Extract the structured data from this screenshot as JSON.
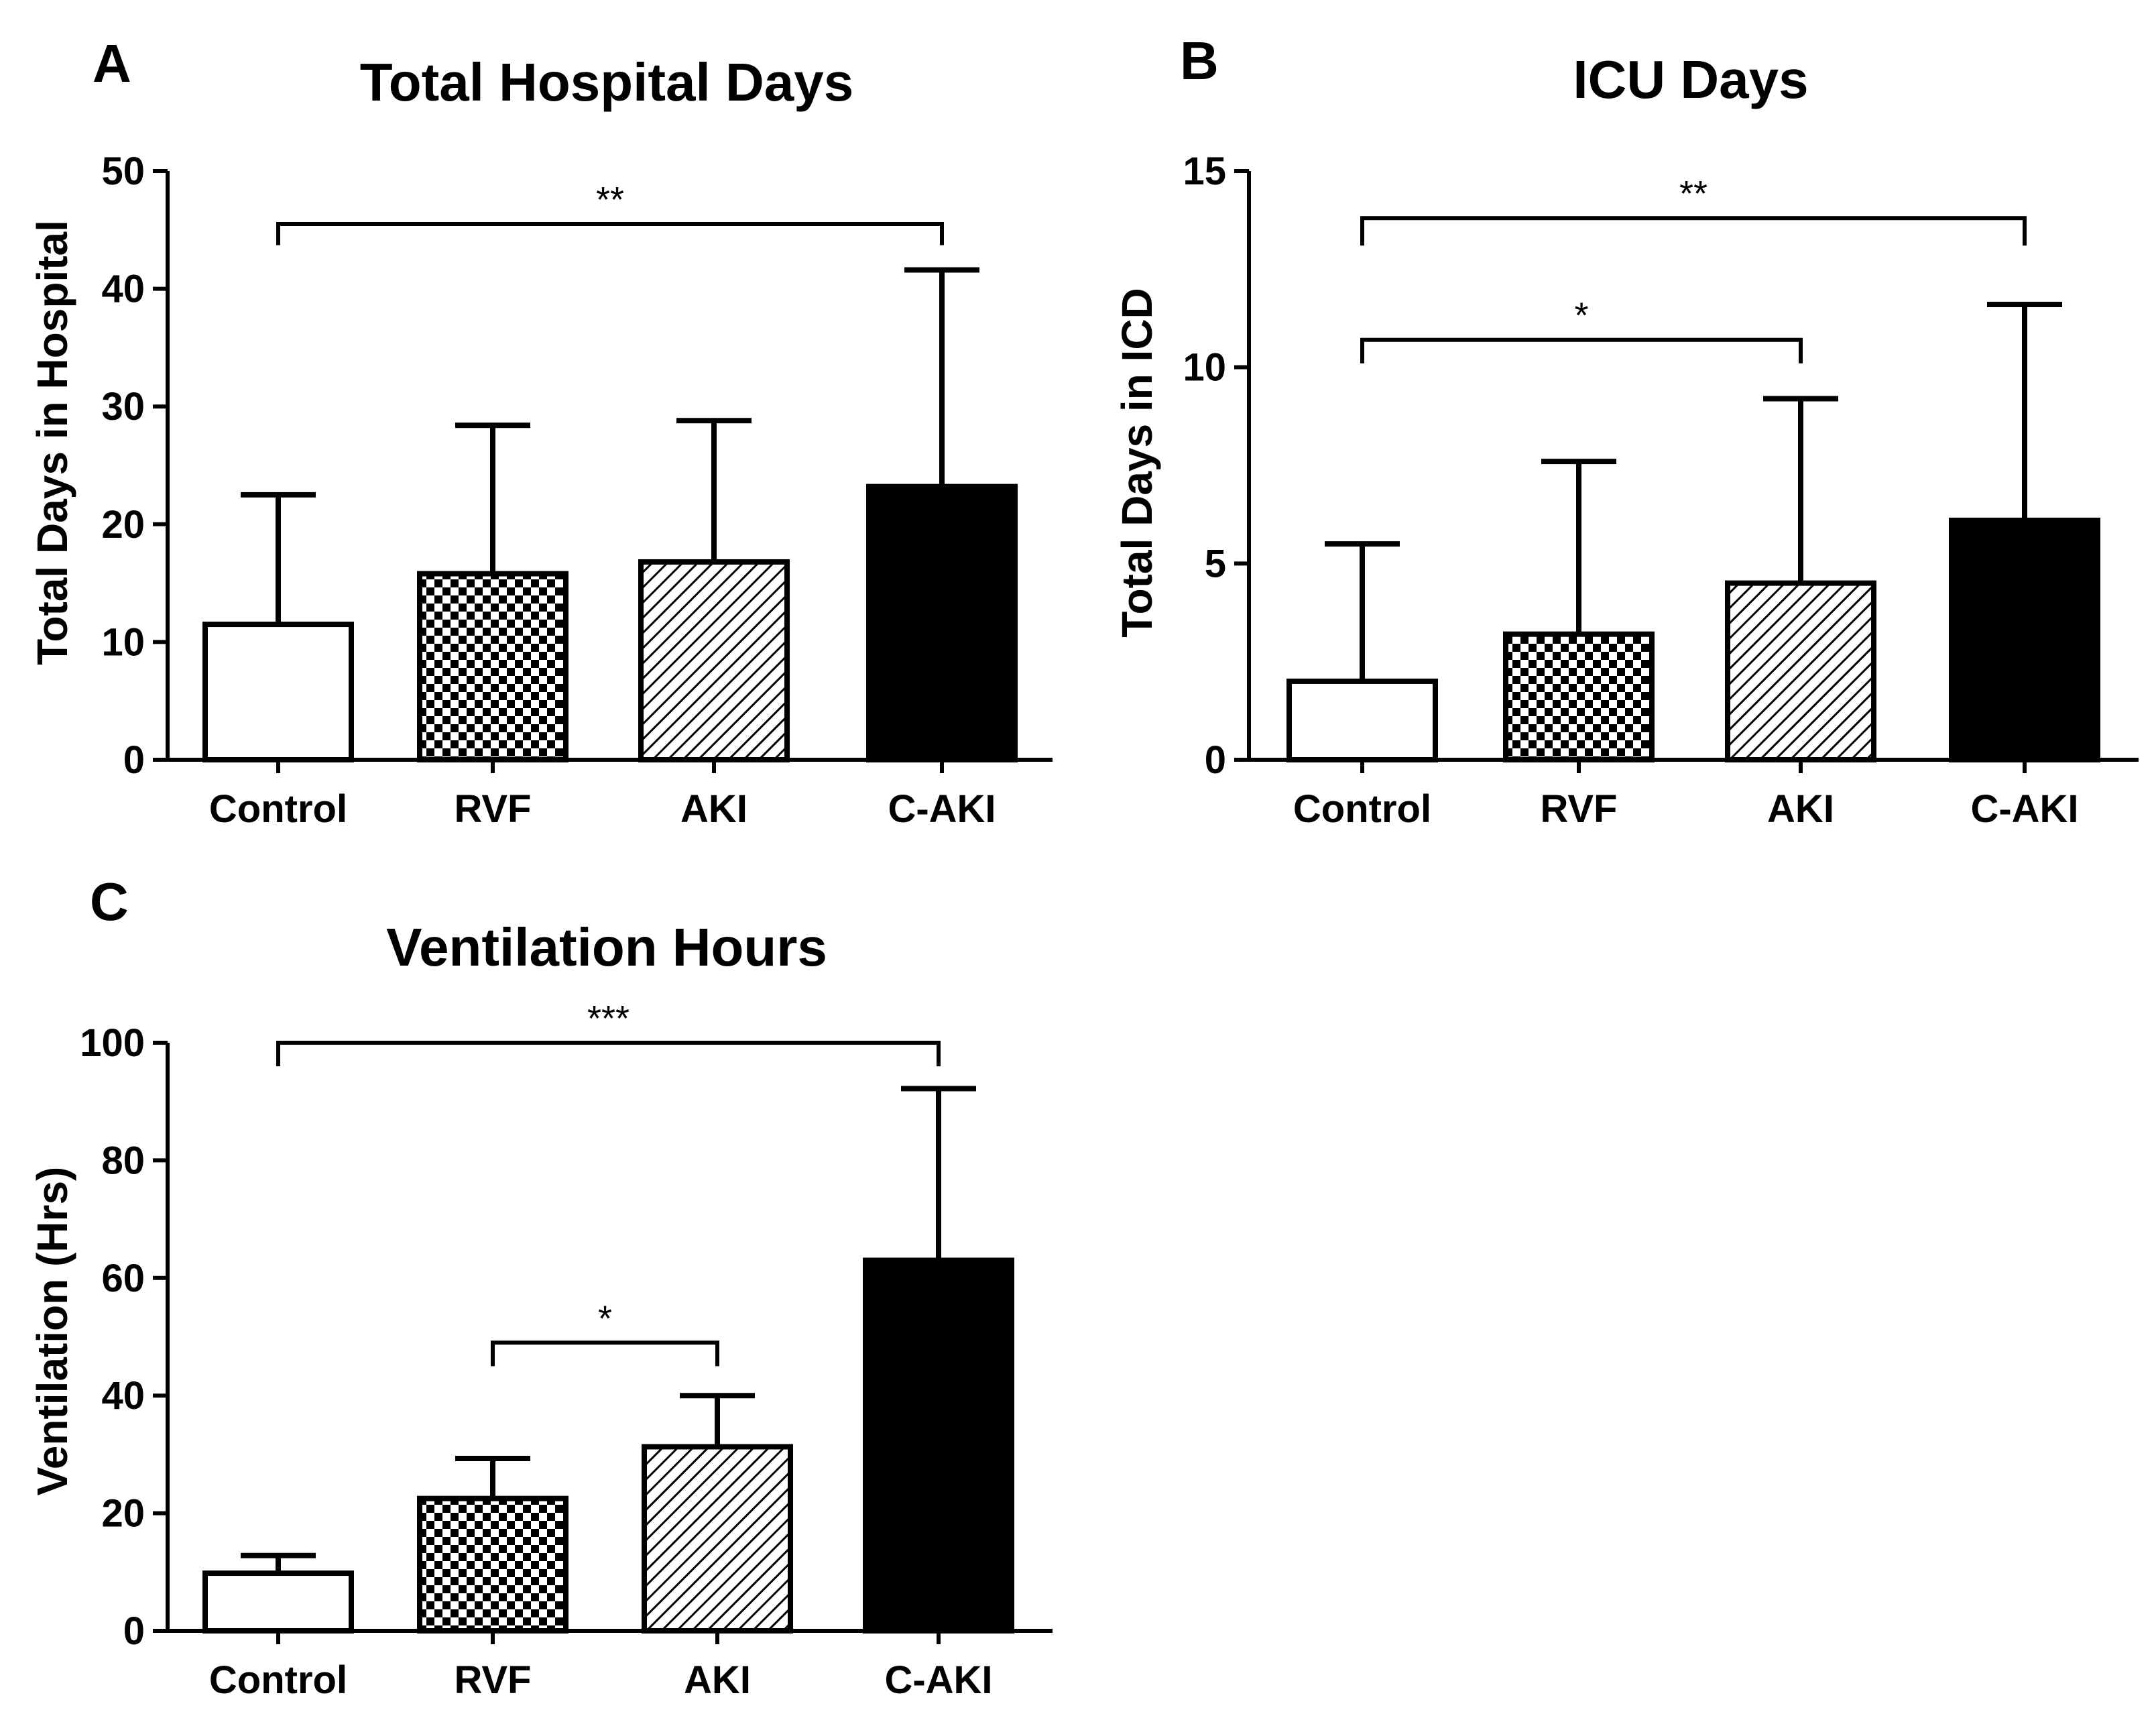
{
  "patterns": {
    "Control": "white",
    "RVF": "checker",
    "AKI": "hatch",
    "C-AKI": "black"
  },
  "chart_data": [
    {
      "id": "A",
      "type": "bar",
      "panel_label": "A",
      "title": "Total Hospital Days",
      "ylabel": "Total Days in Hospital",
      "xlabel": "",
      "categories": [
        "Control",
        "RVF",
        "AKI",
        "C-AKI"
      ],
      "values": [
        11.5,
        15.8,
        16.8,
        23.2
      ],
      "errors_upper": [
        22.5,
        28.4,
        28.8,
        41.6
      ],
      "ylim": [
        0,
        50
      ],
      "yticks": [
        0,
        10,
        20,
        30,
        40,
        50
      ],
      "significance": [
        {
          "from": "Control",
          "to": "C-AKI",
          "label": "**",
          "y": 45.5,
          "tick_bottom": 43.7
        }
      ]
    },
    {
      "id": "B",
      "type": "bar",
      "panel_label": "B",
      "title": "ICU Days",
      "ylabel": "Total Days in ICD",
      "xlabel": "",
      "categories": [
        "Control",
        "RVF",
        "AKI",
        "C-AKI"
      ],
      "values": [
        2.0,
        3.2,
        4.5,
        6.1
      ],
      "errors_upper": [
        5.5,
        7.6,
        9.2,
        11.6
      ],
      "ylim": [
        0,
        15
      ],
      "yticks": [
        0,
        5,
        10,
        15
      ],
      "significance": [
        {
          "from": "Control",
          "to": "C-AKI",
          "label": "**",
          "y": 13.8,
          "tick_bottom": 13.1
        },
        {
          "from": "Control",
          "to": "AKI",
          "label": "*",
          "y": 10.7,
          "tick_bottom": 10.1
        }
      ]
    },
    {
      "id": "C",
      "type": "bar",
      "panel_label": "C",
      "title": "Ventilation Hours",
      "ylabel": "Ventilation (Hrs)",
      "xlabel": "",
      "categories": [
        "Control",
        "RVF",
        "AKI",
        "C-AKI"
      ],
      "values": [
        9.8,
        22.5,
        31.3,
        63.0
      ],
      "errors_upper": [
        12.8,
        29.3,
        40.0,
        92.2
      ],
      "ylim": [
        0,
        100
      ],
      "yticks": [
        0,
        20,
        40,
        60,
        80,
        100
      ],
      "significance": [
        {
          "from": "Control",
          "to": "C-AKI",
          "label": "***",
          "y": 100.0,
          "tick_bottom": 96.0
        },
        {
          "from": "RVF",
          "to": "AKI",
          "label": "*",
          "y": 49.0,
          "tick_bottom": 45.0
        }
      ]
    }
  ]
}
